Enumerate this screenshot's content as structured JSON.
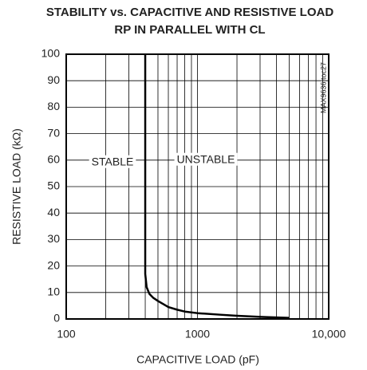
{
  "chart_data": {
    "type": "line",
    "title": [
      "STABILITY vs. CAPACITIVE AND RESISTIVE LOAD",
      "RP IN PARALLEL WITH CL"
    ],
    "x_label": "CAPACITIVE LOAD (pF)",
    "y_label": "RESISTIVE LOAD (kΩ)",
    "annotations": [
      "STABLE",
      "UNSTABLE",
      "MAX9636 toc27"
    ],
    "xscale": "log",
    "xlim": [
      100,
      10000
    ],
    "xticks": [
      100,
      1000,
      {
        "value": 10000,
        "label": "10,000"
      }
    ],
    "ylim": [
      0,
      100
    ],
    "yticks": [
      0,
      10,
      20,
      30,
      40,
      50,
      60,
      70,
      80,
      90,
      100
    ],
    "grid": true,
    "series": [
      {
        "name": null,
        "color": "#000000",
        "x": [
          400,
          400,
          410,
          430,
          460,
          500,
          600,
          700,
          800,
          1000,
          1500,
          2000,
          3000,
          5000
        ],
        "values": [
          100,
          17,
          12,
          9.5,
          8,
          6.8,
          4.5,
          3.5,
          2.8,
          2.2,
          1.6,
          1.2,
          0.8,
          0.4
        ]
      }
    ]
  }
}
